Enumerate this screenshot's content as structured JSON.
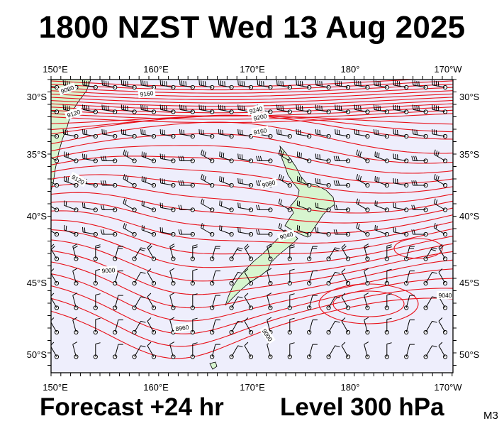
{
  "header": {
    "title": "1800 NZST Wed 13 Aug 2025"
  },
  "footer": {
    "forecast": "Forecast +24 hr",
    "level": "Level 300 hPa",
    "code": "M3"
  },
  "map": {
    "longitude_labels": [
      "150°E",
      "160°E",
      "170°E",
      "180°",
      "170°W"
    ],
    "latitude_labels": [
      "30°S",
      "35°S",
      "40°S",
      "45°S",
      "50°S"
    ],
    "contour_labels": [
      "9240",
      "9200",
      "9160",
      "9120",
      "9080",
      "9040",
      "9000",
      "8960",
      "9000",
      "9040",
      "9080",
      "9120",
      "9160"
    ],
    "colors": {
      "ocean": "#eeeefc",
      "land": "#d7f5cf",
      "contour": "#e8101a",
      "barb": "#000000"
    }
  }
}
